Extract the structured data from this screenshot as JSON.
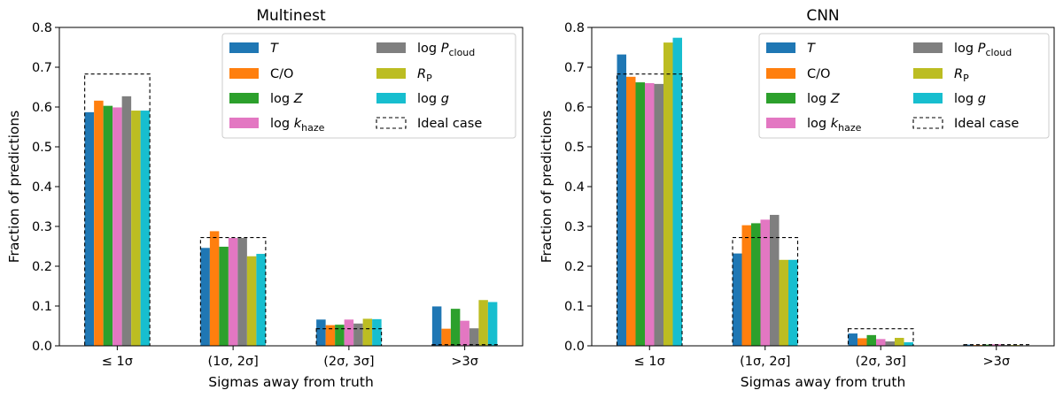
{
  "chart_data": [
    {
      "type": "bar",
      "title": "Multinest",
      "xlabel": "Sigmas away from truth",
      "ylabel": "Fraction of predictions",
      "ylim": [
        0,
        0.8
      ],
      "yticks": [
        "0.0",
        "0.1",
        "0.2",
        "0.3",
        "0.4",
        "0.5",
        "0.6",
        "0.7",
        "0.8"
      ],
      "categories": [
        "≤ 1σ",
        "(1σ, 2σ]",
        "(2σ, 3σ]",
        ">3σ"
      ],
      "series": [
        {
          "name": "T",
          "color": "#1f77b4",
          "values": [
            0.587,
            0.246,
            0.066,
            0.099
          ]
        },
        {
          "name": "C/O",
          "color": "#ff7f0e",
          "values": [
            0.616,
            0.288,
            0.052,
            0.043
          ]
        },
        {
          "name": "log Z",
          "color": "#2ca02c",
          "values": [
            0.603,
            0.249,
            0.053,
            0.093
          ]
        },
        {
          "name": "log k_haze",
          "color": "#e377c2",
          "values": [
            0.599,
            0.271,
            0.066,
            0.063
          ]
        },
        {
          "name": "log P_cloud",
          "color": "#7f7f7f",
          "values": [
            0.627,
            0.271,
            0.056,
            0.044
          ]
        },
        {
          "name": "R_P",
          "color": "#bcbd22",
          "values": [
            0.591,
            0.225,
            0.068,
            0.115
          ]
        },
        {
          "name": "log g",
          "color": "#17becf",
          "values": [
            0.591,
            0.231,
            0.067,
            0.11
          ]
        }
      ],
      "ideal_case": {
        "name": "Ideal case",
        "values": [
          0.683,
          0.272,
          0.043,
          0.003
        ]
      },
      "legend": {
        "placement": "top-right",
        "entries": [
          {
            "key": "T",
            "pre": "",
            "main": "T",
            "sub": "",
            "italic": true
          },
          {
            "key": "C/O",
            "pre": "",
            "main": "C/O",
            "sub": "",
            "italic": false
          },
          {
            "key": "log Z",
            "pre": "log ",
            "main": "Z",
            "sub": "",
            "italic": true
          },
          {
            "key": "log k_haze",
            "pre": "log ",
            "main": "k",
            "sub": "haze",
            "italic": true
          },
          {
            "key": "log P_cloud",
            "pre": "log ",
            "main": "P",
            "sub": "cloud",
            "italic": true
          },
          {
            "key": "R_P",
            "pre": "",
            "main": "R",
            "sub": "P",
            "italic": true
          },
          {
            "key": "log g",
            "pre": "log ",
            "main": "g",
            "sub": "",
            "italic": true
          },
          {
            "key": "Ideal case",
            "pre": "",
            "main": "Ideal case",
            "sub": "",
            "italic": false
          }
        ]
      }
    },
    {
      "type": "bar",
      "title": "CNN",
      "xlabel": "Sigmas away from truth",
      "ylabel": "Fraction of predictions",
      "ylim": [
        0,
        0.8
      ],
      "yticks": [
        "0.0",
        "0.1",
        "0.2",
        "0.3",
        "0.4",
        "0.5",
        "0.6",
        "0.7",
        "0.8"
      ],
      "categories": [
        "≤ 1σ",
        "(1σ, 2σ]",
        "(2σ, 3σ]",
        ">3σ"
      ],
      "series": [
        {
          "name": "T",
          "color": "#1f77b4",
          "values": [
            0.732,
            0.232,
            0.031,
            0.003
          ]
        },
        {
          "name": "C/O",
          "color": "#ff7f0e",
          "values": [
            0.676,
            0.303,
            0.019,
            0.002
          ]
        },
        {
          "name": "log Z",
          "color": "#2ca02c",
          "values": [
            0.662,
            0.308,
            0.027,
            0.003
          ]
        },
        {
          "name": "log k_haze",
          "color": "#e377c2",
          "values": [
            0.66,
            0.317,
            0.017,
            0.004
          ]
        },
        {
          "name": "log P_cloud",
          "color": "#7f7f7f",
          "values": [
            0.658,
            0.329,
            0.011,
            0.002
          ]
        },
        {
          "name": "R_P",
          "color": "#bcbd22",
          "values": [
            0.762,
            0.216,
            0.02,
            0.002
          ]
        },
        {
          "name": "log g",
          "color": "#17becf",
          "values": [
            0.774,
            0.216,
            0.009,
            0.001
          ]
        }
      ],
      "ideal_case": {
        "name": "Ideal case",
        "values": [
          0.683,
          0.272,
          0.043,
          0.003
        ]
      },
      "legend": {
        "placement": "top-right",
        "entries": [
          {
            "key": "T",
            "pre": "",
            "main": "T",
            "sub": "",
            "italic": true
          },
          {
            "key": "C/O",
            "pre": "",
            "main": "C/O",
            "sub": "",
            "italic": false
          },
          {
            "key": "log Z",
            "pre": "log ",
            "main": "Z",
            "sub": "",
            "italic": true
          },
          {
            "key": "log k_haze",
            "pre": "log ",
            "main": "k",
            "sub": "haze",
            "italic": true
          },
          {
            "key": "log P_cloud",
            "pre": "log ",
            "main": "P",
            "sub": "cloud",
            "italic": true
          },
          {
            "key": "R_P",
            "pre": "",
            "main": "R",
            "sub": "P",
            "italic": true
          },
          {
            "key": "log g",
            "pre": "log ",
            "main": "g",
            "sub": "",
            "italic": true
          },
          {
            "key": "Ideal case",
            "pre": "",
            "main": "Ideal case",
            "sub": "",
            "italic": false
          }
        ]
      }
    }
  ]
}
